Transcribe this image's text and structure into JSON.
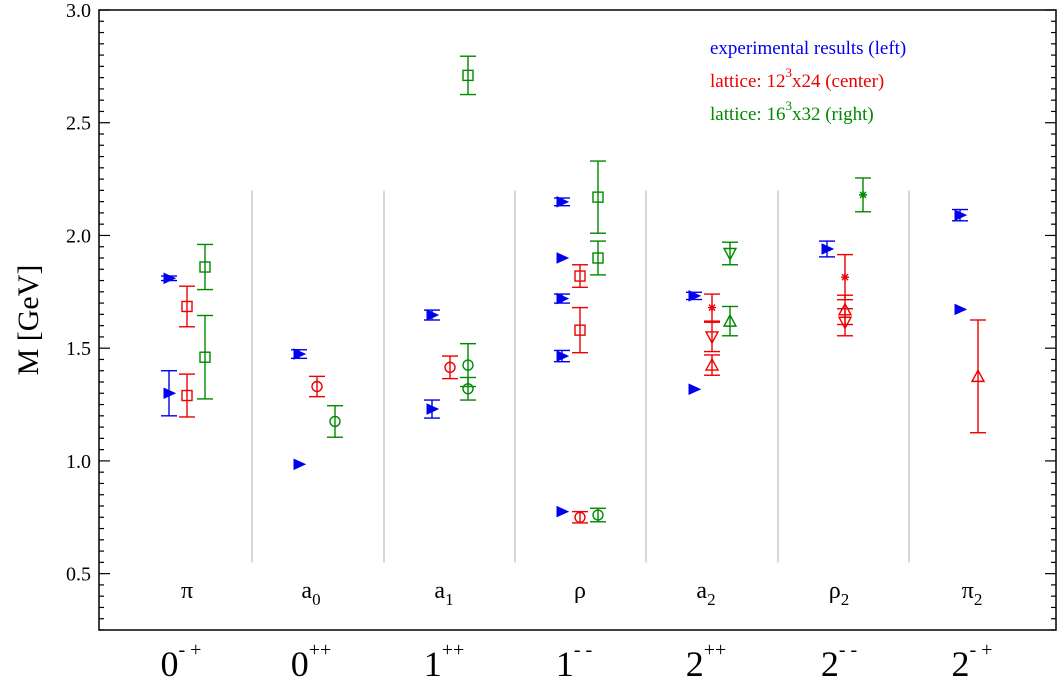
{
  "chart_data": {
    "type": "scatter",
    "ylabel": "M [GeV]",
    "ylim": [
      0.25,
      3.0
    ],
    "yticks": [
      0.5,
      1.0,
      1.5,
      2.0,
      2.5,
      3.0
    ],
    "ytick_labels": [
      "0.5",
      "1.0",
      "1.5",
      "2.0",
      "2.5",
      "3.0"
    ],
    "grid": false,
    "legend_placement": "top-right",
    "colors": {
      "experimental": "#0000ee",
      "lattice12": "#ee0000",
      "lattice16": "#008800",
      "divider": "#cccccc"
    },
    "legend": [
      {
        "key": "experimental",
        "parts": [
          {
            "t": "experimental results  (left)"
          }
        ]
      },
      {
        "key": "lattice12",
        "parts": [
          {
            "t": "lattice: 12"
          },
          {
            "t": "3",
            "sup": true
          },
          {
            "t": "x24  (center)"
          }
        ]
      },
      {
        "key": "lattice16",
        "parts": [
          {
            "t": "lattice: 16"
          },
          {
            "t": "3",
            "sup": true
          },
          {
            "t": "x32  (right)"
          }
        ]
      }
    ],
    "channels": [
      {
        "particle": {
          "base": "π",
          "sub": ""
        },
        "quantum": {
          "base": "0",
          "sup": "- +"
        },
        "experimental": [
          {
            "y": 1.81,
            "err": 0.01
          },
          {
            "y": 1.3,
            "err": 0.1
          }
        ],
        "lattice12": [
          {
            "y": 1.685,
            "err": 0.09,
            "marker": "square"
          },
          {
            "y": 1.29,
            "err": 0.095,
            "marker": "square"
          }
        ],
        "lattice16": [
          {
            "y": 1.86,
            "err": 0.1,
            "marker": "square"
          },
          {
            "y": 1.46,
            "err": 0.185,
            "marker": "square"
          }
        ]
      },
      {
        "particle": {
          "base": "a",
          "sub": "0"
        },
        "quantum": {
          "base": "0",
          "sup": "++"
        },
        "experimental": [
          {
            "y": 1.474,
            "err": 0.019
          },
          {
            "y": 0.985,
            "err": 0
          }
        ],
        "lattice12": [
          {
            "y": 1.33,
            "err": 0.045,
            "marker": "circle"
          }
        ],
        "lattice16": [
          {
            "y": 1.175,
            "err": 0.07,
            "marker": "circle"
          }
        ]
      },
      {
        "particle": {
          "base": "a",
          "sub": "1"
        },
        "quantum": {
          "base": "1",
          "sup": "++"
        },
        "experimental": [
          {
            "y": 1.647,
            "err": 0.022
          },
          {
            "y": 1.23,
            "err": 0.04
          }
        ],
        "lattice12": [
          {
            "y": 1.415,
            "err": 0.05,
            "marker": "circle"
          }
        ],
        "lattice16": [
          {
            "y": 2.71,
            "err": 0.085,
            "marker": "square"
          },
          {
            "y": 1.425,
            "err": 0.095,
            "marker": "circle"
          },
          {
            "y": 1.32,
            "err": 0.05,
            "marker": "circle"
          }
        ]
      },
      {
        "particle": {
          "base": "ρ",
          "sub": ""
        },
        "quantum": {
          "base": "1",
          "sup": "- -"
        },
        "experimental": [
          {
            "y": 2.149,
            "err": 0.017
          },
          {
            "y": 1.9,
            "err": 0
          },
          {
            "y": 1.72,
            "err": 0.02
          },
          {
            "y": 1.465,
            "err": 0.025
          },
          {
            "y": 0.775,
            "err": 0
          }
        ],
        "lattice12": [
          {
            "y": 1.82,
            "err": 0.05,
            "marker": "square"
          },
          {
            "y": 1.58,
            "err": 0.1,
            "marker": "square"
          },
          {
            "y": 0.75,
            "err": 0.025,
            "marker": "circle"
          }
        ],
        "lattice16": [
          {
            "y": 2.17,
            "err": 0.16,
            "marker": "square"
          },
          {
            "y": 1.9,
            "err": 0.075,
            "marker": "square"
          },
          {
            "y": 0.76,
            "err": 0.03,
            "marker": "circle"
          }
        ]
      },
      {
        "particle": {
          "base": "a",
          "sub": "2"
        },
        "quantum": {
          "base": "2",
          "sup": "++"
        },
        "experimental": [
          {
            "y": 1.732,
            "err": 0.016
          },
          {
            "y": 1.318,
            "err": 0
          }
        ],
        "lattice12": [
          {
            "y": 1.68,
            "err": 0.06,
            "marker": "star"
          },
          {
            "y": 1.55,
            "err": 0.065,
            "marker": "triangle-down"
          },
          {
            "y": 1.425,
            "err": 0.045,
            "marker": "triangle-up"
          }
        ],
        "lattice16": [
          {
            "y": 1.92,
            "err": 0.05,
            "marker": "triangle-down"
          },
          {
            "y": 1.62,
            "err": 0.065,
            "marker": "triangle-up"
          }
        ]
      },
      {
        "particle": {
          "base": "ρ",
          "sub": "2"
        },
        "quantum": {
          "base": "2",
          "sup": "- -"
        },
        "experimental": [
          {
            "y": 1.94,
            "err": 0.035
          }
        ],
        "lattice12": [
          {
            "y": 1.815,
            "err": 0.1,
            "marker": "star"
          },
          {
            "y": 1.67,
            "err": 0.065,
            "marker": "triangle-up"
          },
          {
            "y": 1.615,
            "err": 0.06,
            "marker": "triangle-down"
          }
        ],
        "lattice16": [
          {
            "y": 2.18,
            "err": 0.075,
            "marker": "star"
          }
        ]
      },
      {
        "particle": {
          "base": "π",
          "sub": "2"
        },
        "quantum": {
          "base": "2",
          "sup": "- +"
        },
        "experimental": [
          {
            "y": 2.09,
            "err": 0.025
          },
          {
            "y": 1.672,
            "err": 0
          }
        ],
        "lattice12": [
          {
            "y": 1.375,
            "err": 0.25,
            "marker": "triangle-up"
          }
        ],
        "lattice16": []
      }
    ]
  }
}
